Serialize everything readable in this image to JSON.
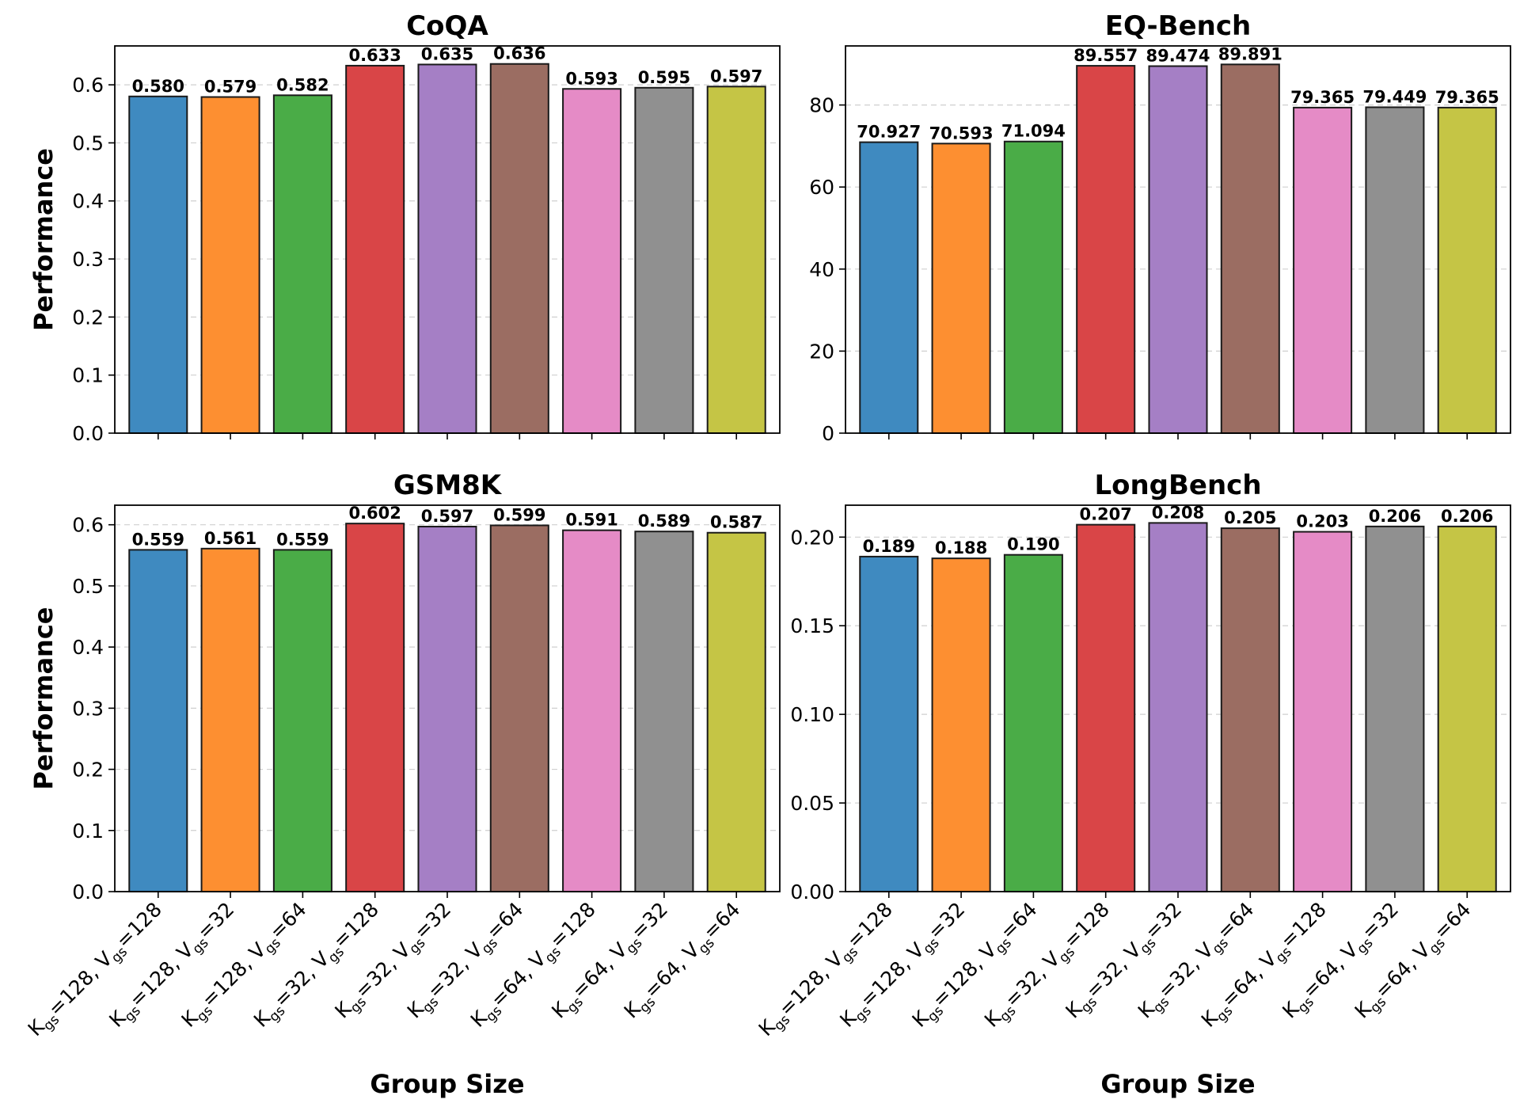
{
  "colors": [
    "#3f8ac0",
    "#fd8f31",
    "#4aac47",
    "#d94547",
    "#a57fc5",
    "#9b6d62",
    "#e58bc6",
    "#909090",
    "#c5c545"
  ],
  "label_parts": [
    {
      "k": "128",
      "v": "128"
    },
    {
      "k": "128",
      "v": "32"
    },
    {
      "k": "128",
      "v": "64"
    },
    {
      "k": "32",
      "v": "128"
    },
    {
      "k": "32",
      "v": "32"
    },
    {
      "k": "32",
      "v": "64"
    },
    {
      "k": "64",
      "v": "128"
    },
    {
      "k": "64",
      "v": "32"
    },
    {
      "k": "64",
      "v": "64"
    }
  ],
  "label_tokens": {
    "k": "K",
    "v": "V",
    "sub": "gs",
    "eq": "=",
    "sep": ", "
  },
  "chart_data": [
    {
      "type": "bar",
      "title": "CoQA",
      "categories": [
        "K_gs=128, V_gs=128",
        "K_gs=128, V_gs=32",
        "K_gs=128, V_gs=64",
        "K_gs=32, V_gs=128",
        "K_gs=32, V_gs=32",
        "K_gs=32, V_gs=64",
        "K_gs=64, V_gs=128",
        "K_gs=64, V_gs=32",
        "K_gs=64, V_gs=64"
      ],
      "values": [
        0.58,
        0.579,
        0.582,
        0.633,
        0.635,
        0.636,
        0.593,
        0.595,
        0.597
      ],
      "value_labels": [
        "0.580",
        "0.579",
        "0.582",
        "0.633",
        "0.635",
        "0.636",
        "0.593",
        "0.595",
        "0.597"
      ],
      "ylim": [
        0,
        0.667
      ],
      "yticks": [
        0.0,
        0.1,
        0.2,
        0.3,
        0.4,
        0.5,
        0.6
      ],
      "ytick_labels": [
        "0.0",
        "0.1",
        "0.2",
        "0.3",
        "0.4",
        "0.5",
        "0.6"
      ],
      "ylabel": "Performance",
      "xlabel": "",
      "show_xtick_labels": false,
      "grid": "y-dashed"
    },
    {
      "type": "bar",
      "title": "EQ-Bench",
      "categories": [
        "K_gs=128, V_gs=128",
        "K_gs=128, V_gs=32",
        "K_gs=128, V_gs=64",
        "K_gs=32, V_gs=128",
        "K_gs=32, V_gs=32",
        "K_gs=32, V_gs=64",
        "K_gs=64, V_gs=128",
        "K_gs=64, V_gs=32",
        "K_gs=64, V_gs=64"
      ],
      "values": [
        70.927,
        70.593,
        71.094,
        89.557,
        89.474,
        89.891,
        79.365,
        79.449,
        79.365
      ],
      "value_labels": [
        "70.927",
        "70.593",
        "71.094",
        "89.557",
        "89.474",
        "89.891",
        "79.365",
        "79.449",
        "79.365"
      ],
      "ylim": [
        0,
        94.4
      ],
      "yticks": [
        0,
        20,
        40,
        60,
        80
      ],
      "ytick_labels": [
        "0",
        "20",
        "40",
        "60",
        "80"
      ],
      "ylabel": "",
      "xlabel": "",
      "show_xtick_labels": false,
      "grid": "y-dashed"
    },
    {
      "type": "bar",
      "title": "GSM8K",
      "categories": [
        "K_gs=128, V_gs=128",
        "K_gs=128, V_gs=32",
        "K_gs=128, V_gs=64",
        "K_gs=32, V_gs=128",
        "K_gs=32, V_gs=32",
        "K_gs=32, V_gs=64",
        "K_gs=64, V_gs=128",
        "K_gs=64, V_gs=32",
        "K_gs=64, V_gs=64"
      ],
      "values": [
        0.559,
        0.561,
        0.559,
        0.602,
        0.597,
        0.599,
        0.591,
        0.589,
        0.587
      ],
      "value_labels": [
        "0.559",
        "0.561",
        "0.559",
        "0.602",
        "0.597",
        "0.599",
        "0.591",
        "0.589",
        "0.587"
      ],
      "ylim": [
        0,
        0.632
      ],
      "yticks": [
        0.0,
        0.1,
        0.2,
        0.3,
        0.4,
        0.5,
        0.6
      ],
      "ytick_labels": [
        "0.0",
        "0.1",
        "0.2",
        "0.3",
        "0.4",
        "0.5",
        "0.6"
      ],
      "ylabel": "Performance",
      "xlabel": "Group Size",
      "show_xtick_labels": true,
      "grid": "y-dashed"
    },
    {
      "type": "bar",
      "title": "LongBench",
      "categories": [
        "K_gs=128, V_gs=128",
        "K_gs=128, V_gs=32",
        "K_gs=128, V_gs=64",
        "K_gs=32, V_gs=128",
        "K_gs=32, V_gs=32",
        "K_gs=32, V_gs=64",
        "K_gs=64, V_gs=128",
        "K_gs=64, V_gs=32",
        "K_gs=64, V_gs=64"
      ],
      "values": [
        0.189,
        0.188,
        0.19,
        0.207,
        0.208,
        0.205,
        0.203,
        0.206,
        0.206
      ],
      "value_labels": [
        "0.189",
        "0.188",
        "0.190",
        "0.207",
        "0.208",
        "0.205",
        "0.203",
        "0.206",
        "0.206"
      ],
      "ylim": [
        0,
        0.218
      ],
      "yticks": [
        0.0,
        0.05,
        0.1,
        0.15,
        0.2
      ],
      "ytick_labels": [
        "0.00",
        "0.05",
        "0.10",
        "0.15",
        "0.20"
      ],
      "ylabel": "",
      "xlabel": "Group Size",
      "show_xtick_labels": true,
      "grid": "y-dashed"
    }
  ]
}
